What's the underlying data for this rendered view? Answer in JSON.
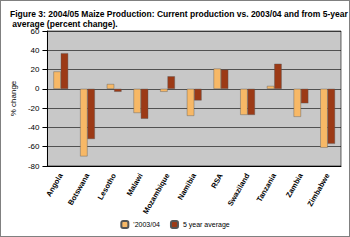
{
  "chart_data": {
    "type": "bar",
    "title": "Figure 3: 2004/05 Maize Production: Current production vs. 2003/04 and from 5-year average (percent change).",
    "y_label": "% change",
    "categories": [
      "Angola",
      "Botswana",
      "Lesotho",
      "Malawi",
      "Mozambique",
      "Namibia",
      "RSA",
      "Swaziland",
      "Tanzania",
      "Zambia",
      "Zimbabwe"
    ],
    "series": [
      {
        "name": "'2003/04",
        "color": "#f7b866",
        "values": [
          18,
          -70,
          5,
          -25,
          -3,
          -28,
          21,
          -27,
          3,
          -29,
          -61
        ]
      },
      {
        "name": "5 year average",
        "color": "#9c3a16",
        "values": [
          37,
          -52,
          -3,
          -31,
          13,
          -12,
          20,
          -27,
          26,
          -15,
          -57
        ]
      }
    ],
    "ylim": [
      -80,
      60
    ],
    "yticks": [
      -80,
      -60,
      -40,
      -20,
      0,
      20,
      40,
      60
    ],
    "grid": true,
    "legend": "bottom"
  }
}
